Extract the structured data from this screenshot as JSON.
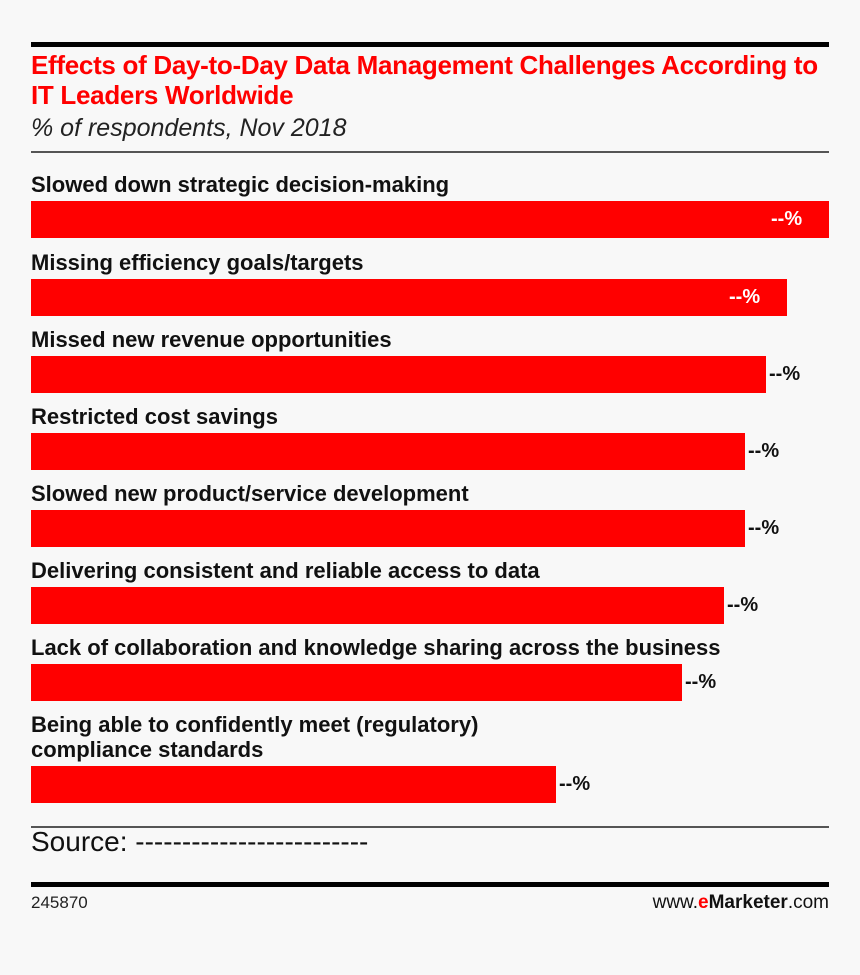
{
  "chart_data": {
    "type": "bar",
    "orientation": "horizontal",
    "title": "Effects of Day-to-Day Data Management Challenges According to IT Leaders Worldwide",
    "subtitle": "% of respondents, Nov 2018",
    "categories": [
      "Slowed down strategic decision-making",
      "Missing efficiency goals/targets",
      "Missed new revenue opportunities",
      "Restricted cost savings",
      "Slowed new product/service development",
      "Delivering consistent and reliable access to data",
      "Lack of collaboration and knowledge sharing across the business",
      "Being able to confidently meet (regulatory)\ncompliance standards"
    ],
    "values": [
      38,
      36,
      35,
      34,
      34,
      33,
      31,
      25
    ],
    "data_labels": [
      "--%",
      "--%",
      "--%",
      "--%",
      "--%",
      "--%",
      "--%",
      "--%"
    ],
    "bar_color": "#ff0000",
    "grid": false
  },
  "source": "Source: -------------------------",
  "chart_id": "245870",
  "brand": {
    "prefix": "www.",
    "e": "e",
    "name": "Marketer",
    "suffix": ".com"
  }
}
